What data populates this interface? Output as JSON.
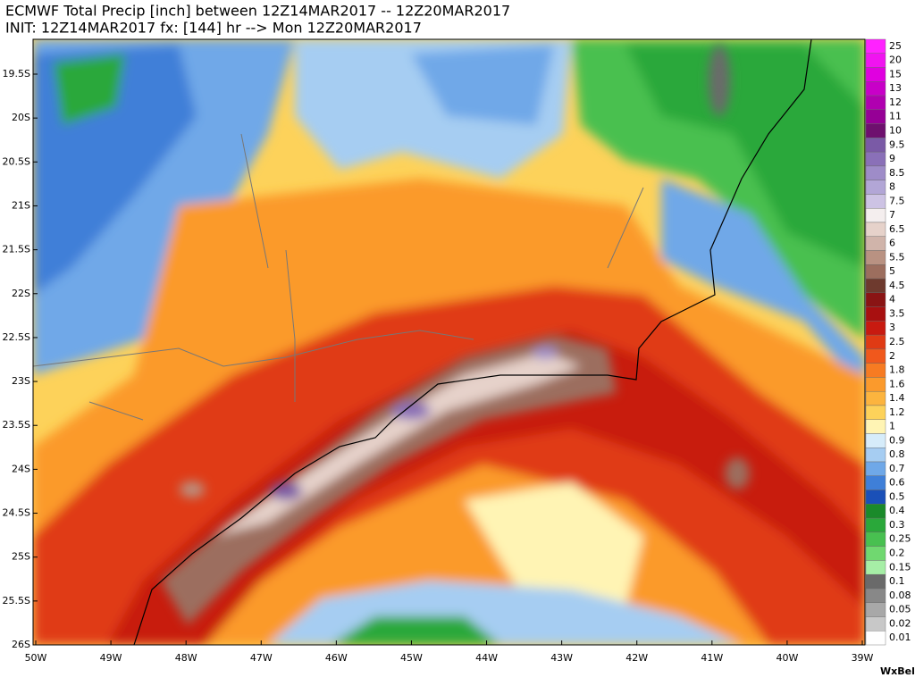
{
  "header": {
    "title_line1": "ECMWF Total Precip [inch] between 12Z14MAR2017 -- 12Z20MAR2017",
    "title_line2": "INIT: 12Z14MAR2017 fx: [144] hr --> Mon 12Z20MAR2017"
  },
  "map": {
    "lat_labels": [
      "19.5S",
      "20S",
      "20.5S",
      "21S",
      "21.5S",
      "22S",
      "22.5S",
      "23S",
      "23.5S",
      "24S",
      "24.5S",
      "25S",
      "25.5S",
      "26S"
    ],
    "lon_labels": [
      "50W",
      "49W",
      "48W",
      "47W",
      "46W",
      "45W",
      "44W",
      "43W",
      "42W",
      "41W",
      "40W",
      "39W"
    ]
  },
  "colorbar": {
    "entries": [
      {
        "value": 25,
        "color": "#ff22ff"
      },
      {
        "value": 20,
        "color": "#f014f0"
      },
      {
        "value": 15,
        "color": "#e000e0"
      },
      {
        "value": 13,
        "color": "#c800c8"
      },
      {
        "value": 12,
        "color": "#b000b0"
      },
      {
        "value": 11,
        "color": "#960096"
      },
      {
        "value": 10,
        "color": "#6e106e"
      },
      {
        "value": 9.5,
        "color": "#7a5aa6"
      },
      {
        "value": 9,
        "color": "#8a70b8"
      },
      {
        "value": 8.5,
        "color": "#9e8cc8"
      },
      {
        "value": 8,
        "color": "#b2a6d6"
      },
      {
        "value": 7.5,
        "color": "#cdc3e4"
      },
      {
        "value": 7,
        "color": "#f4eeee"
      },
      {
        "value": 6.5,
        "color": "#e6d2ca"
      },
      {
        "value": 6,
        "color": "#d0b4aa"
      },
      {
        "value": 5.5,
        "color": "#b99282"
      },
      {
        "value": 5,
        "color": "#9c6e5e"
      },
      {
        "value": 4.5,
        "color": "#6e3a2e"
      },
      {
        "value": 4,
        "color": "#8a1414"
      },
      {
        "value": 3.5,
        "color": "#a81010"
      },
      {
        "value": 3,
        "color": "#c81a10"
      },
      {
        "value": 2.5,
        "color": "#e03a14"
      },
      {
        "value": 2,
        "color": "#f0581c"
      },
      {
        "value": 1.8,
        "color": "#f77b22"
      },
      {
        "value": 1.6,
        "color": "#fb9a2c"
      },
      {
        "value": 1.4,
        "color": "#fcb43e"
      },
      {
        "value": 1.2,
        "color": "#fdd25a"
      },
      {
        "value": 1,
        "color": "#fff4b4"
      },
      {
        "value": 0.9,
        "color": "#d6ecfa"
      },
      {
        "value": 0.8,
        "color": "#a6cdf2"
      },
      {
        "value": 0.7,
        "color": "#6fa8e8"
      },
      {
        "value": 0.6,
        "color": "#3f7fd8"
      },
      {
        "value": 0.5,
        "color": "#1a50b8"
      },
      {
        "value": 0.4,
        "color": "#1a8a2a"
      },
      {
        "value": 0.3,
        "color": "#2aa83a"
      },
      {
        "value": 0.25,
        "color": "#48c050"
      },
      {
        "value": 0.2,
        "color": "#70d870"
      },
      {
        "value": 0.15,
        "color": "#a6eea6"
      },
      {
        "value": 0.1,
        "color": "#6a6a6a"
      },
      {
        "value": 0.08,
        "color": "#888888"
      },
      {
        "value": 0.05,
        "color": "#a8a8a8"
      },
      {
        "value": 0.02,
        "color": "#c8c8c8"
      },
      {
        "value": 0.01,
        "color": "#ffffff"
      }
    ]
  },
  "logo": "WxBell"
}
